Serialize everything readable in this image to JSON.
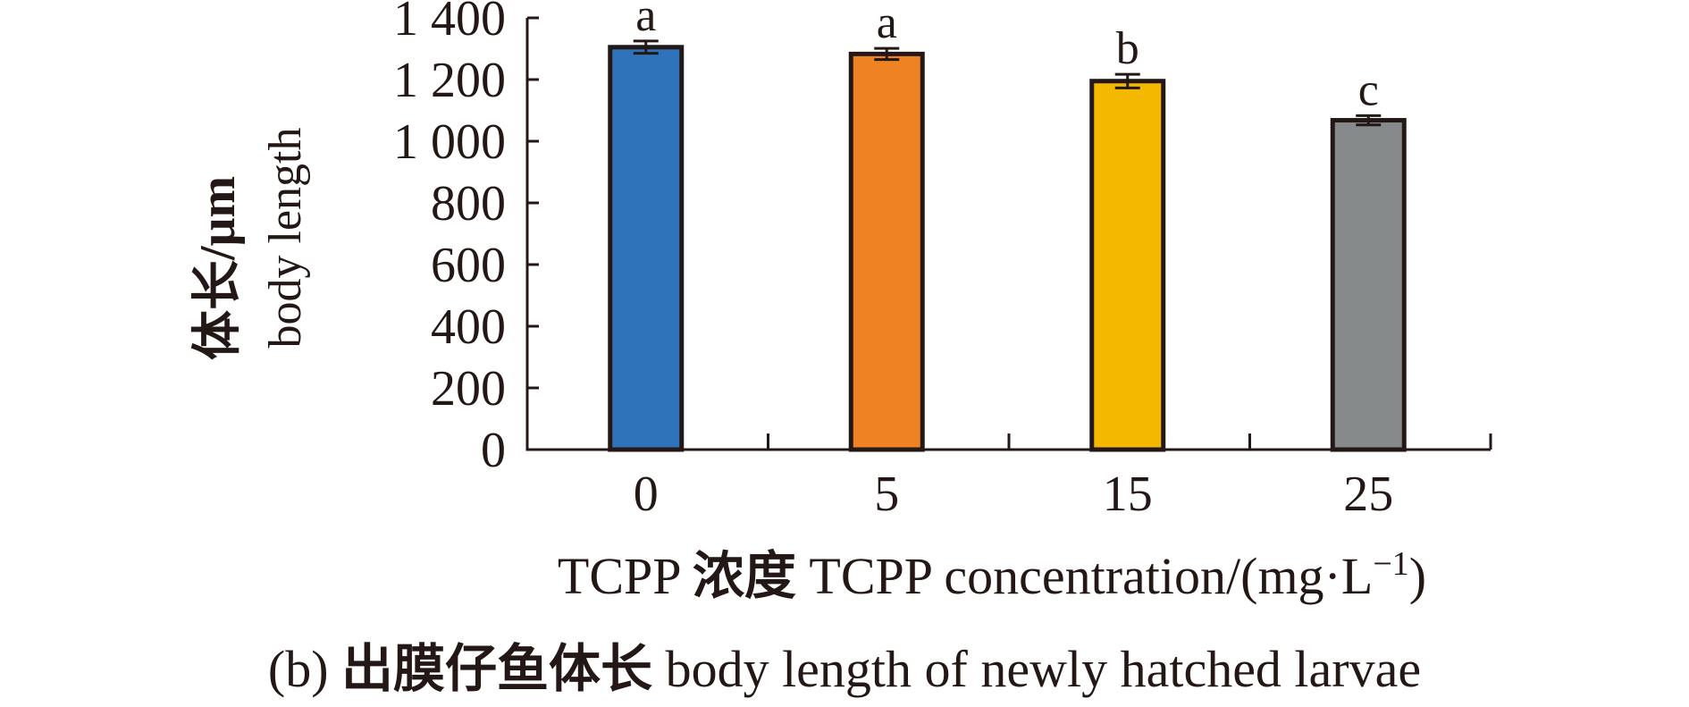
{
  "chart_data": {
    "type": "bar",
    "categories": [
      "0",
      "5",
      "15",
      "25"
    ],
    "values": [
      1305,
      1283,
      1195,
      1068
    ],
    "errors": [
      20,
      18,
      22,
      15
    ],
    "significance": [
      "a",
      "a",
      "b",
      "c"
    ],
    "colors": [
      "#2f73ba",
      "#ef8222",
      "#f5b800",
      "#868a8a"
    ],
    "ylim": [
      0,
      1400
    ],
    "yticks": [
      0,
      200,
      400,
      600,
      800,
      1000,
      1200,
      1400
    ],
    "ytick_labels": [
      "0",
      "200",
      "400",
      "600",
      "800",
      "1 000",
      "1 200",
      "1 400"
    ],
    "ylabel": {
      "cn": "体长/μm",
      "en": "body length"
    },
    "xlabel": {
      "prefix": "TCPP ",
      "cn": "浓度",
      "middle": " TCPP concentration/(mg·L",
      "superscript": "−1",
      "suffix": ")"
    },
    "caption": {
      "prefix": "(b) ",
      "cn": "出膜仔鱼体长",
      "en": " body length of newly hatched larvae"
    },
    "grid": false,
    "legend": "none"
  }
}
